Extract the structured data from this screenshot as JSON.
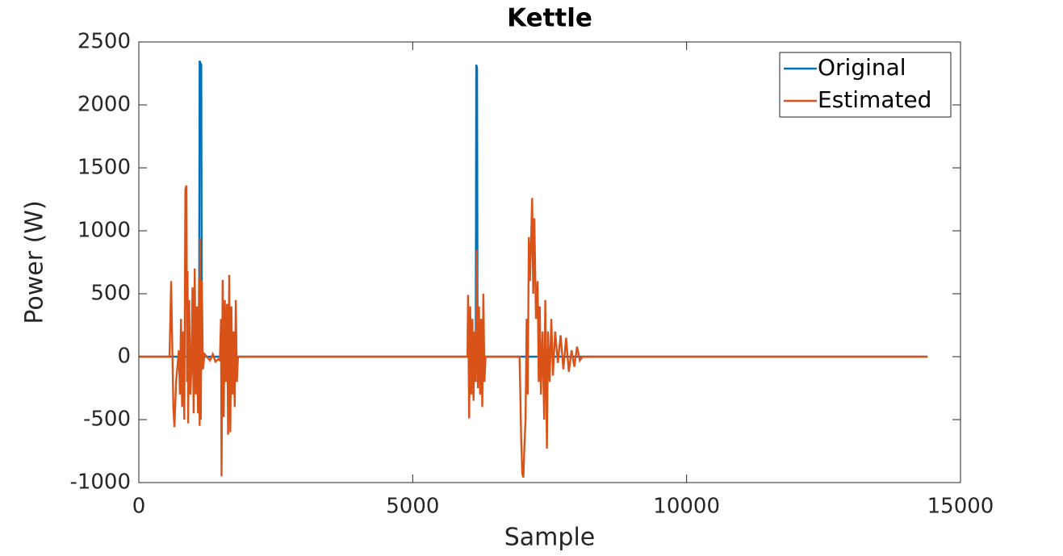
{
  "chart_data": {
    "type": "line",
    "title": "Kettle",
    "xlabel": "Sample",
    "ylabel": "Power (W)",
    "xlim": [
      0,
      15000
    ],
    "xticks": [
      0,
      5000,
      10000,
      15000
    ],
    "ylim": [
      -1000,
      2500
    ],
    "yticks": [
      -1000,
      -500,
      0,
      500,
      1000,
      1500,
      2000,
      2500
    ],
    "legend": "northeast",
    "grid": false,
    "series": [
      {
        "name": "Original",
        "color": "#0072bd",
        "x": [
          0,
          1100,
          1110,
          1125,
          1140,
          1150,
          6130,
          6150,
          6160,
          6175,
          6185,
          14400
        ],
        "values": [
          0,
          0,
          2350,
          2330,
          2320,
          0,
          0,
          0,
          2320,
          2290,
          0,
          0
        ]
      },
      {
        "name": "Estimated",
        "color": "#d95319",
        "x": [
          0,
          560,
          590,
          610,
          630,
          650,
          680,
          700,
          730,
          750,
          770,
          790,
          810,
          830,
          850,
          870,
          880,
          890,
          900,
          920,
          940,
          960,
          980,
          1000,
          1020,
          1040,
          1060,
          1080,
          1100,
          1110,
          1120,
          1130,
          1150,
          1170,
          1200,
          1300,
          1350,
          1400,
          1450,
          1480,
          1500,
          1510,
          1530,
          1550,
          1570,
          1590,
          1610,
          1630,
          1650,
          1670,
          1690,
          1710,
          1730,
          1750,
          1770,
          1790,
          1810,
          6000,
          6010,
          6030,
          6050,
          6070,
          6090,
          6110,
          6130,
          6150,
          6170,
          6190,
          6210,
          6230,
          6250,
          6270,
          6290,
          6310,
          6330,
          6950,
          6960,
          6980,
          7000,
          7020,
          7040,
          7060,
          7080,
          7100,
          7120,
          7140,
          7160,
          7180,
          7200,
          7220,
          7250,
          7280,
          7300,
          7320,
          7340,
          7370,
          7400,
          7420,
          7450,
          7470,
          7500,
          7530,
          7560,
          7600,
          7650,
          7700,
          7750,
          7800,
          7850,
          7900,
          7950,
          8000,
          8050,
          8100,
          14400
        ],
        "values": [
          0,
          0,
          600,
          100,
          -400,
          -560,
          -200,
          -100,
          50,
          -300,
          300,
          -400,
          200,
          -500,
          1330,
          1360,
          -200,
          680,
          -530,
          450,
          -300,
          -100,
          550,
          -450,
          700,
          -300,
          400,
          -450,
          620,
          -550,
          940,
          -500,
          600,
          -100,
          20,
          -30,
          20,
          -40,
          -20,
          -30,
          300,
          -950,
          610,
          -480,
          450,
          -200,
          420,
          -620,
          650,
          -600,
          400,
          -300,
          200,
          -400,
          450,
          -200,
          0,
          0,
          490,
          -490,
          400,
          -300,
          300,
          -350,
          200,
          -200,
          850,
          -250,
          400,
          -300,
          300,
          -400,
          500,
          -200,
          0,
          0,
          -200,
          -650,
          -930,
          -960,
          -700,
          -500,
          300,
          -300,
          950,
          600,
          900,
          1260,
          500,
          1100,
          300,
          600,
          -200,
          400,
          -300,
          200,
          -500,
          450,
          -730,
          200,
          -200,
          300,
          -150,
          200,
          -50,
          170,
          -100,
          150,
          -120,
          50,
          -80,
          80,
          -30,
          0,
          0
        ]
      }
    ]
  }
}
